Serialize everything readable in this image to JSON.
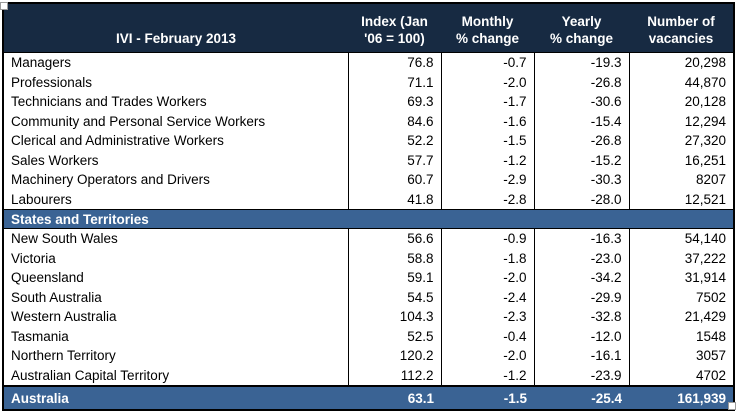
{
  "colors": {
    "header_navy": "#172A42",
    "band_steel_blue": "#3A6394",
    "border_black": "#000000",
    "body_text": "#000000",
    "header_text": "#FFFFFF"
  },
  "chart_data": {
    "type": "table",
    "title": "IVI - February 2013",
    "column_headers": [
      [
        "Index (Jan",
        "'06 = 100)"
      ],
      [
        "Monthly",
        "% change"
      ],
      [
        "Yearly",
        "% change"
      ],
      [
        "Number of",
        "vacancies"
      ]
    ],
    "occupation_rows": [
      [
        "Managers",
        "76.8",
        "-0.7",
        "-19.3",
        "20,298"
      ],
      [
        "Professionals",
        "71.1",
        "-2.0",
        "-26.8",
        "44,870"
      ],
      [
        "Technicians and Trades Workers",
        "69.3",
        "-1.7",
        "-30.6",
        "20,128"
      ],
      [
        "Community and Personal Service Workers",
        "84.6",
        "-1.6",
        "-15.4",
        "12,294"
      ],
      [
        "Clerical and Administrative Workers",
        "52.2",
        "-1.5",
        "-26.8",
        "27,320"
      ],
      [
        "Sales Workers",
        "57.7",
        "-1.2",
        "-15.2",
        "16,251"
      ],
      [
        "Machinery Operators and Drivers",
        "60.7",
        "-2.9",
        "-30.3",
        "8207"
      ],
      [
        "Labourers",
        "41.8",
        "-2.8",
        "-28.0",
        "12,521"
      ]
    ],
    "section_label": "States and Territories",
    "state_rows": [
      [
        "New South Wales",
        "56.6",
        "-0.9",
        "-16.3",
        "54,140"
      ],
      [
        "Victoria",
        "58.8",
        "-1.8",
        "-23.0",
        "37,222"
      ],
      [
        "Queensland",
        "59.1",
        "-2.0",
        "-34.2",
        "31,914"
      ],
      [
        "South Australia",
        "54.5",
        "-2.4",
        "-29.9",
        "7502"
      ],
      [
        "Western Australia",
        "104.3",
        "-2.3",
        "-32.8",
        "21,429"
      ],
      [
        "Tasmania",
        "52.5",
        "-0.4",
        "-12.0",
        "1548"
      ],
      [
        "Northern Territory",
        "120.2",
        "-2.0",
        "-16.1",
        "3057"
      ],
      [
        "Australian Capital Territory",
        "112.2",
        "-1.2",
        "-23.9",
        "4702"
      ]
    ],
    "total_row": [
      "Australia",
      "63.1",
      "-1.5",
      "-25.4",
      "161,939"
    ]
  }
}
